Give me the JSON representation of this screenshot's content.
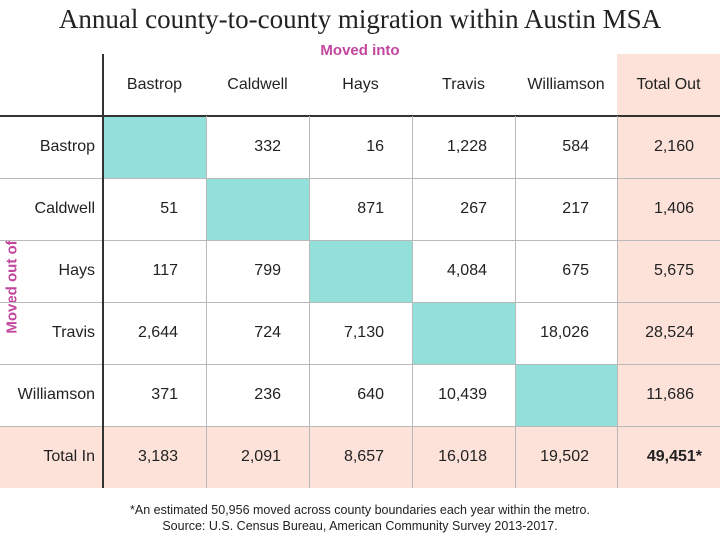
{
  "title": "Annual county-to-county migration within Austin MSA",
  "col_axis_label": "Moved into",
  "row_axis_label": "Moved out of",
  "colors": {
    "diagonal": "#93dfda",
    "totals": "#fde2da",
    "axis_label": "#c2469e"
  },
  "chart_data": {
    "type": "table",
    "columns": [
      "Bastrop",
      "Caldwell",
      "Hays",
      "Travis",
      "Williamson",
      "Total Out"
    ],
    "rows": [
      {
        "label": "Bastrop",
        "values": [
          "",
          "332",
          "16",
          "1,228",
          "584",
          "2,160"
        ]
      },
      {
        "label": "Caldwell",
        "values": [
          "51",
          "",
          "871",
          "267",
          "217",
          "1,406"
        ]
      },
      {
        "label": "Hays",
        "values": [
          "117",
          "799",
          "",
          "4,084",
          "675",
          "5,675"
        ]
      },
      {
        "label": "Travis",
        "values": [
          "2,644",
          "724",
          "7,130",
          "",
          "18,026",
          "28,524"
        ]
      },
      {
        "label": "Williamson",
        "values": [
          "371",
          "236",
          "640",
          "10,439",
          "",
          "11,686"
        ]
      },
      {
        "label": "Total In",
        "values": [
          "3,183",
          "2,091",
          "8,657",
          "16,018",
          "19,502",
          "49,451*"
        ]
      }
    ]
  },
  "footnote": "*An estimated 50,956 moved across county boundaries each year within the metro.",
  "source": "Source:  U.S. Census Bureau, American Community Survey 2013-2017."
}
